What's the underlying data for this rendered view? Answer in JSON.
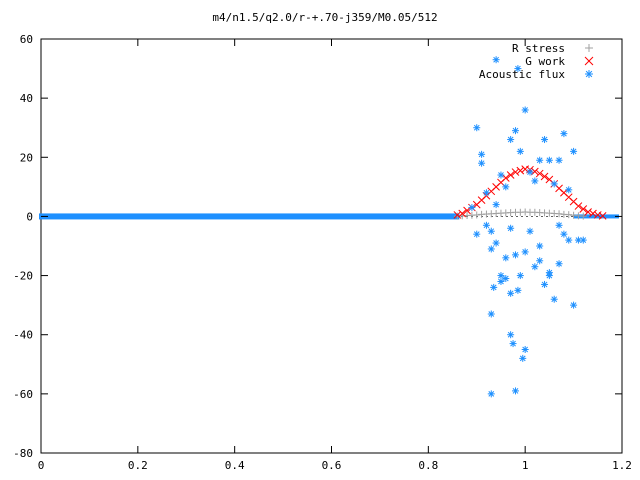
{
  "chart_data": {
    "type": "scatter",
    "title": "m4/n1.5/q2.0/r-+.70-j359/M0.05/512",
    "xlabel": "",
    "ylabel": "",
    "xlim": [
      0,
      1.2
    ],
    "ylim": [
      -80,
      60
    ],
    "x_ticks": [
      "0",
      "0.2",
      "0.4",
      "0.6",
      "0.8",
      "1",
      "1.2"
    ],
    "x_tick_values": [
      0,
      0.2,
      0.4,
      0.6,
      0.8,
      1.0,
      1.2
    ],
    "y_ticks": [
      "60",
      "40",
      "20",
      "0",
      "-20",
      "-40",
      "-60",
      "-80"
    ],
    "y_tick_values": [
      60,
      40,
      20,
      0,
      -20,
      -40,
      -60,
      -80
    ],
    "grid": false,
    "legend_position": "top-right",
    "series": [
      {
        "name": "R stress",
        "marker": "plus",
        "color": "#a0a0a0",
        "x": [
          0.86,
          0.87,
          0.88,
          0.89,
          0.9,
          0.91,
          0.92,
          0.93,
          0.94,
          0.95,
          0.96,
          0.97,
          0.98,
          0.99,
          1.0,
          1.01,
          1.02,
          1.03,
          1.04,
          1.05,
          1.06,
          1.07,
          1.08,
          1.09,
          1.1,
          1.11,
          1.12
        ],
        "y": [
          0.1,
          0.2,
          0.3,
          0.4,
          0.5,
          0.7,
          0.8,
          0.9,
          1.0,
          1.1,
          1.2,
          1.3,
          1.4,
          1.4,
          1.5,
          1.4,
          1.4,
          1.3,
          1.2,
          1.1,
          1.0,
          0.9,
          0.7,
          0.6,
          0.4,
          0.2,
          0.1
        ]
      },
      {
        "name": "G work",
        "marker": "cross",
        "color": "#ff0000",
        "x": [
          0.86,
          0.87,
          0.88,
          0.89,
          0.9,
          0.91,
          0.92,
          0.93,
          0.94,
          0.95,
          0.96,
          0.97,
          0.98,
          0.99,
          1.0,
          1.01,
          1.02,
          1.03,
          1.04,
          1.05,
          1.06,
          1.07,
          1.08,
          1.09,
          1.1,
          1.11,
          1.12,
          1.13,
          1.14,
          1.15,
          1.16
        ],
        "y": [
          0.5,
          1.0,
          2.0,
          3.0,
          4.0,
          5.5,
          7.0,
          8.5,
          10.0,
          11.5,
          13.0,
          14.0,
          15.0,
          15.5,
          16.0,
          15.8,
          15.2,
          14.5,
          13.5,
          12.5,
          11.0,
          9.5,
          8.0,
          6.5,
          5.0,
          3.5,
          2.5,
          1.5,
          1.0,
          0.5,
          0.2
        ]
      },
      {
        "name": "Acoustic flux",
        "marker": "star",
        "color": "#1e90ff",
        "x": [
          0.89,
          0.9,
          0.91,
          0.92,
          0.93,
          0.94,
          0.95,
          0.96,
          0.97,
          0.98,
          0.99,
          1.0,
          1.01,
          1.02,
          1.03,
          1.04,
          1.05,
          1.06,
          1.07,
          1.08,
          1.09,
          1.1,
          1.11,
          1.12,
          0.9,
          0.92,
          0.93,
          0.935,
          0.95,
          0.96,
          0.97,
          0.975,
          0.98,
          0.985,
          0.99,
          0.995,
          1.0,
          1.0,
          1.01,
          1.02,
          1.03,
          1.04,
          1.05,
          1.06,
          1.07,
          1.08,
          1.09,
          1.1,
          0.91,
          0.93,
          0.94,
          0.96,
          0.97,
          0.98,
          1.03,
          1.05,
          1.07,
          0.94,
          0.95,
          0.985,
          0.93,
          0.97
        ],
        "y": [
          3.0,
          30.0,
          21.0,
          8.0,
          -5.0,
          4.0,
          -20.0,
          10.0,
          26.0,
          29.0,
          22.0,
          36.0,
          15.0,
          12.0,
          19.0,
          26.0,
          19.0,
          11.0,
          19.0,
          28.0,
          9.0,
          22.0,
          -8.0,
          -8.0,
          -6.0,
          -3.0,
          -33.0,
          -24.0,
          -22.0,
          -14.0,
          -40.0,
          -43.0,
          -59.0,
          -25.0,
          -20.0,
          -48.0,
          -45.0,
          -12.0,
          -5.0,
          -17.0,
          -10.0,
          -23.0,
          -19.0,
          -28.0,
          -3.0,
          -6.0,
          -8.0,
          -30.0,
          18.0,
          -11.0,
          -9.0,
          -21.0,
          -26.0,
          -13.0,
          -15.0,
          -20.0,
          -16.0,
          53.0,
          14.0,
          50.0,
          -60.0,
          -4.0
        ]
      }
    ]
  }
}
